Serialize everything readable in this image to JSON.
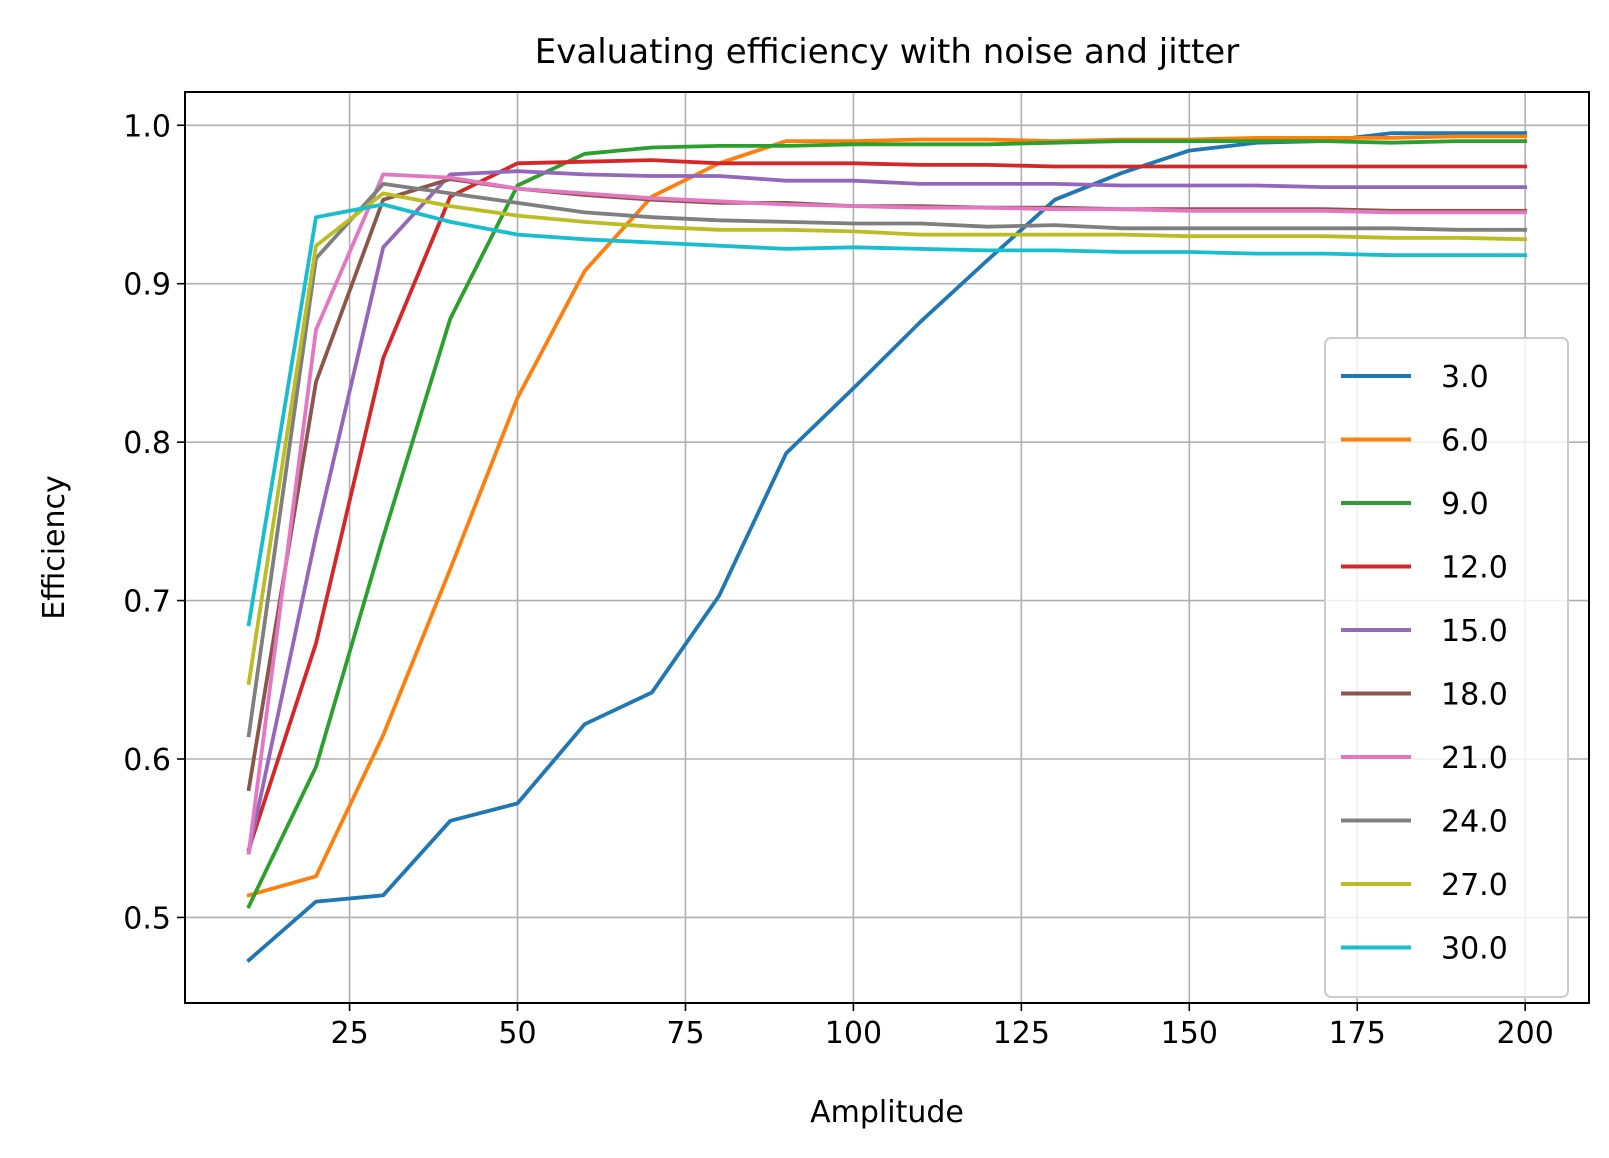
{
  "chart_data": {
    "type": "line",
    "title": "Evaluating efficiency with noise and jitter",
    "xlabel": "Amplitude",
    "ylabel": "Efficiency",
    "xlim": [
      0.5,
      209.5
    ],
    "ylim": [
      0.446,
      1.021
    ],
    "xticks": [
      25,
      50,
      75,
      100,
      125,
      150,
      175,
      200
    ],
    "yticks": [
      0.5,
      0.6,
      0.7,
      0.8,
      0.9,
      1.0
    ],
    "xtick_labels": [
      "25",
      "50",
      "75",
      "100",
      "125",
      "150",
      "175",
      "200"
    ],
    "ytick_labels": [
      "0.5",
      "0.6",
      "0.7",
      "0.8",
      "0.9",
      "1.0"
    ],
    "grid": true,
    "legend_position": "center-right",
    "x": [
      10,
      20,
      30,
      40,
      50,
      60,
      70,
      80,
      90,
      100,
      110,
      120,
      130,
      140,
      150,
      160,
      170,
      180,
      190,
      200
    ],
    "series": [
      {
        "name": "3.0",
        "color": "#1f77b4",
        "values": [
          0.473,
          0.51,
          0.514,
          0.561,
          0.572,
          0.622,
          0.642,
          0.703,
          0.793,
          0.834,
          0.876,
          0.915,
          0.953,
          0.97,
          0.984,
          0.989,
          0.99,
          0.995,
          0.995,
          0.995
        ]
      },
      {
        "name": "6.0",
        "color": "#ff7f0e",
        "values": [
          0.514,
          0.526,
          0.615,
          0.72,
          0.828,
          0.908,
          0.955,
          0.976,
          0.99,
          0.99,
          0.991,
          0.991,
          0.99,
          0.991,
          0.991,
          0.992,
          0.992,
          0.992,
          0.993,
          0.993
        ]
      },
      {
        "name": "9.0",
        "color": "#2ca02c",
        "values": [
          0.507,
          0.595,
          0.74,
          0.878,
          0.962,
          0.982,
          0.986,
          0.987,
          0.987,
          0.988,
          0.988,
          0.988,
          0.989,
          0.99,
          0.99,
          0.99,
          0.99,
          0.989,
          0.99,
          0.99
        ]
      },
      {
        "name": "12.0",
        "color": "#d62728",
        "values": [
          0.543,
          0.673,
          0.853,
          0.955,
          0.976,
          0.977,
          0.978,
          0.976,
          0.976,
          0.976,
          0.975,
          0.975,
          0.974,
          0.974,
          0.974,
          0.974,
          0.974,
          0.974,
          0.974,
          0.974
        ]
      },
      {
        "name": "15.0",
        "color": "#9467bd",
        "values": [
          0.541,
          0.741,
          0.923,
          0.969,
          0.971,
          0.969,
          0.968,
          0.968,
          0.965,
          0.965,
          0.963,
          0.963,
          0.963,
          0.962,
          0.962,
          0.962,
          0.961,
          0.961,
          0.961,
          0.961
        ]
      },
      {
        "name": "18.0",
        "color": "#8c564b",
        "values": [
          0.581,
          0.838,
          0.953,
          0.966,
          0.96,
          0.956,
          0.953,
          0.951,
          0.951,
          0.949,
          0.949,
          0.948,
          0.948,
          0.947,
          0.947,
          0.947,
          0.947,
          0.946,
          0.946,
          0.946
        ]
      },
      {
        "name": "21.0",
        "color": "#e377c2",
        "values": [
          0.541,
          0.871,
          0.969,
          0.967,
          0.96,
          0.957,
          0.954,
          0.952,
          0.95,
          0.949,
          0.948,
          0.948,
          0.947,
          0.947,
          0.946,
          0.946,
          0.946,
          0.945,
          0.945,
          0.945
        ]
      },
      {
        "name": "24.0",
        "color": "#7f7f7f",
        "values": [
          0.615,
          0.916,
          0.963,
          0.957,
          0.951,
          0.945,
          0.942,
          0.94,
          0.939,
          0.938,
          0.938,
          0.936,
          0.937,
          0.935,
          0.935,
          0.935,
          0.935,
          0.935,
          0.934,
          0.934
        ]
      },
      {
        "name": "27.0",
        "color": "#bcbd22",
        "values": [
          0.648,
          0.924,
          0.957,
          0.949,
          0.943,
          0.939,
          0.936,
          0.934,
          0.934,
          0.933,
          0.931,
          0.931,
          0.931,
          0.931,
          0.93,
          0.93,
          0.93,
          0.929,
          0.929,
          0.928
        ]
      },
      {
        "name": "30.0",
        "color": "#17becf",
        "values": [
          0.685,
          0.942,
          0.95,
          0.939,
          0.931,
          0.928,
          0.926,
          0.924,
          0.922,
          0.923,
          0.922,
          0.921,
          0.921,
          0.92,
          0.92,
          0.919,
          0.919,
          0.918,
          0.918,
          0.918
        ]
      }
    ]
  }
}
